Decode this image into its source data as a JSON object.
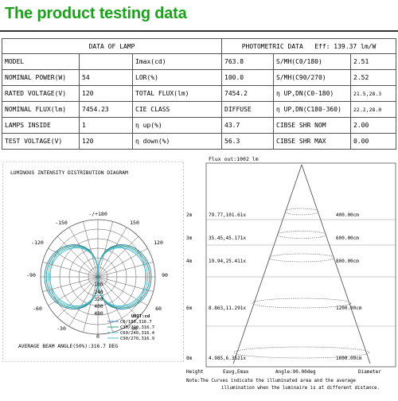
{
  "title": "The product testing data",
  "table": {
    "left_header": "DATA OF LAMP",
    "right_header": "PHOTOMETRIC DATA",
    "eff_label": "Eff: 139.37 lm/W",
    "rows": [
      [
        "MODEL",
        "",
        "Imax(cd)",
        "763.8",
        "S/MH(C0/180)",
        "2.51"
      ],
      [
        "NOMINAL POWER(W)",
        "54",
        "LOR(%)",
        "100.0",
        "S/MH(C90/270)",
        "2.52"
      ],
      [
        "RATED VOLTAGE(V)",
        "120",
        "TOTAL FLUX(lm)",
        "7454.2",
        "η UP,DN(C0-180)",
        "21.5,28.3"
      ],
      [
        "NOMINAL FLUX(lm)",
        "7454.23",
        "CIE CLASS",
        "DIFFUSE",
        "η UP,DN(C180-360)",
        "22.2,28.0"
      ],
      [
        "LAMPS INSIDE",
        "1",
        "η up(%)",
        "43.7",
        "CIBSE SHR NOM",
        "2.00"
      ],
      [
        "TEST VOLTAGE(V)",
        "120",
        "η down(%)",
        "56.3",
        "CIBSE SHR MAX",
        "0.00"
      ]
    ]
  },
  "polar": {
    "title": "LUMINOUS INTENSITY DISTRIBUTION DIAGRAM",
    "angle_labels": [
      "-/+180",
      "-150",
      "150",
      "-120",
      "120",
      "-90",
      "90",
      "-60",
      "60",
      "-30",
      "30",
      "0"
    ],
    "radial_labels": [
      "160",
      "240",
      "320",
      "400",
      "480"
    ],
    "unit": "UNIT:cd",
    "legend": [
      "C0/180,316.7",
      "C30/210,316.7",
      "C60/240,316.4",
      "C90/270,316.9"
    ],
    "colors": [
      "#2a7ab0",
      "#1f9c6e",
      "#5bbad5",
      "#3ab7c8"
    ],
    "footer": "AVERAGE BEAM ANGLE(50%):316.7 DEG"
  },
  "cone": {
    "flux": "Flux out:1002 lm",
    "rows": [
      {
        "height": "2m",
        "values": "79.77,101.61x",
        "diameter": "400.00cm"
      },
      {
        "height": "3m",
        "values": "35.45,45.171x",
        "diameter": "600.00cm"
      },
      {
        "height": "4m",
        "values": "19.94,25.411x",
        "diameter": "800.00cm"
      },
      {
        "height": "6m",
        "values": "8.863,11.291x",
        "diameter": "1200.00cm"
      },
      {
        "height": "8m",
        "values": "4.985,6.3521x",
        "diameter": "1600.00cm"
      }
    ],
    "col_height": "Height",
    "col_eavg": "Eavg,Emax",
    "col_angle": "Angle:90.00deg",
    "col_diameter": "Diameter",
    "note_line1": "Note:The Curves indicate the illuminated area and the average",
    "note_line2": "illumination when the luminaire is at different distance."
  }
}
